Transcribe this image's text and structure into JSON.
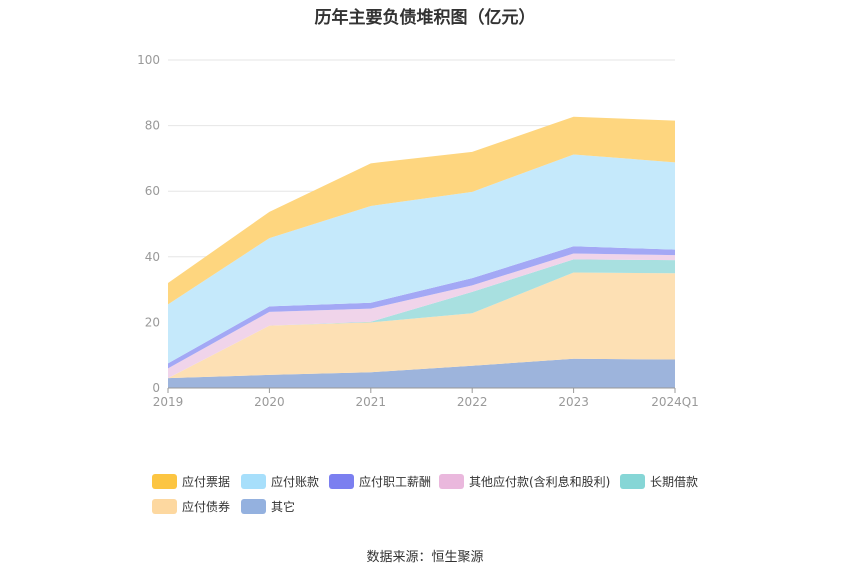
{
  "chart_data": {
    "type": "area",
    "stacked": true,
    "title": "历年主要负债堆积图（亿元）",
    "x": [
      "2019",
      "2020",
      "2021",
      "2022",
      "2023",
      "2024Q1"
    ],
    "ylim": [
      0,
      100
    ],
    "yticks": [
      0,
      20,
      40,
      60,
      80,
      100
    ],
    "grid": true,
    "legend_position": "bottom",
    "series": [
      {
        "name": "其它",
        "color": "#9db4dc",
        "values": [
          3,
          4,
          4.8,
          6.8,
          8.9,
          8.7
        ]
      },
      {
        "name": "应付债券",
        "color": "#fde0b4",
        "values": [
          0,
          15,
          15.2,
          16,
          26.3,
          26.3
        ]
      },
      {
        "name": "长期借款",
        "color": "#a8e0e0",
        "values": [
          0,
          0,
          0.2,
          6.5,
          4,
          4
        ]
      },
      {
        "name": "其他应付款(含利息和股利)",
        "color": "#f0d4ea",
        "values": [
          3,
          4.2,
          4,
          2,
          1.8,
          1.5
        ]
      },
      {
        "name": "应付职工薪酬",
        "color": "#a3a8f5",
        "values": [
          1.5,
          1.7,
          1.8,
          2.2,
          2.2,
          1.7
        ]
      },
      {
        "name": "应付账款",
        "color": "#c5e9fb",
        "values": [
          18,
          20.8,
          29.5,
          26.3,
          28,
          26.6
        ]
      },
      {
        "name": "应付票据",
        "color": "#fed67f",
        "values": [
          6.5,
          8,
          13,
          12.2,
          11.5,
          12.7
        ]
      }
    ]
  },
  "legend": [
    {
      "label": "应付票据",
      "color": "#fcc542"
    },
    {
      "label": "应付账款",
      "color": "#a7dffb"
    },
    {
      "label": "应付职工薪酬",
      "color": "#7b7ff0"
    },
    {
      "label": "其他应付款(含利息和股利)",
      "color": "#eab8dd"
    },
    {
      "label": "长期借款",
      "color": "#86d6d6"
    },
    {
      "label": "应付债券",
      "color": "#fdd8a0"
    },
    {
      "label": "其它",
      "color": "#94b1df"
    }
  ],
  "source": "数据来源：恒生聚源"
}
